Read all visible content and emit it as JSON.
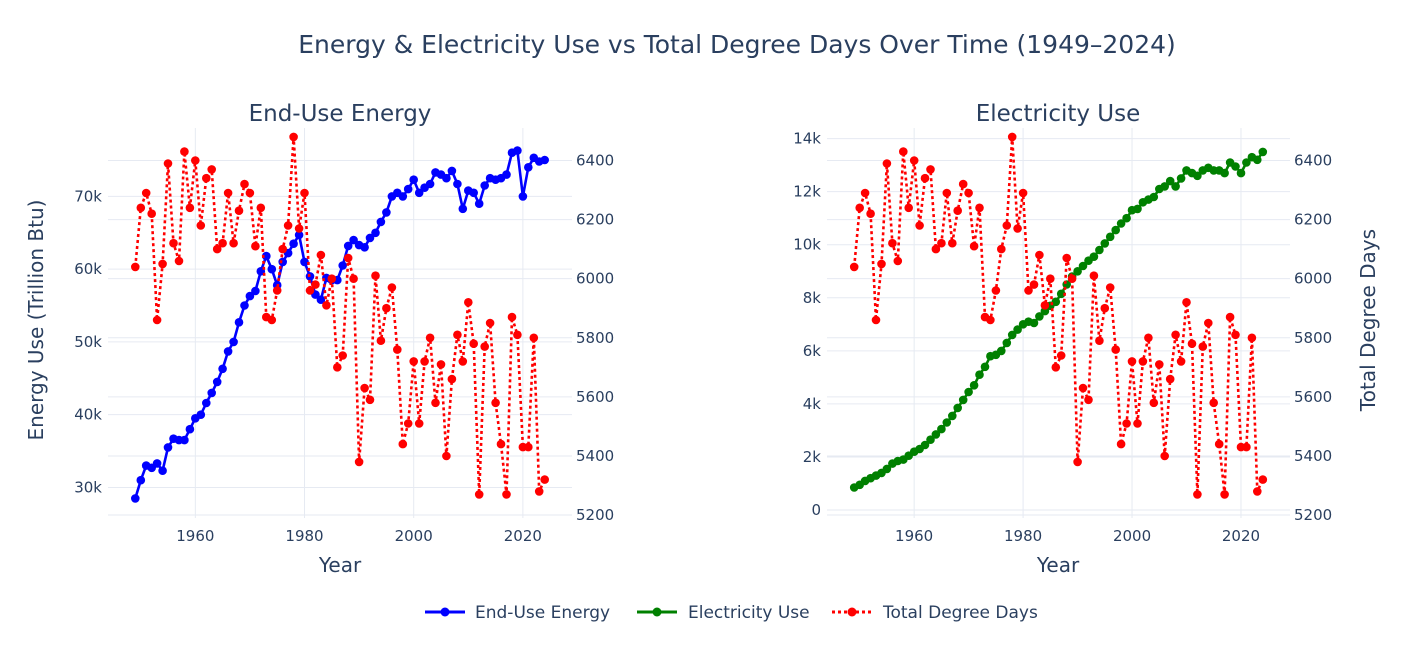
{
  "title": "Energy & Electricity Use vs Total Degree Days Over Time (1949–2024)",
  "legend": {
    "position": "bottom-center",
    "items": [
      {
        "label": "End-Use Energy",
        "color": "#0000ff",
        "dash": "solid"
      },
      {
        "label": "Electricity Use",
        "color": "#008000",
        "dash": "solid"
      },
      {
        "label": "Total Degree Days",
        "color": "#ff0000",
        "dash": "dot"
      }
    ]
  },
  "colors": {
    "energy": "#0000ff",
    "electricity": "#008000",
    "degree_days": "#ff0000",
    "grid": "#e6eaf2",
    "text": "#2a3f5f"
  },
  "chart_data": [
    {
      "type": "line",
      "title": "End-Use Energy",
      "xlabel": "Year",
      "ylabel": "Energy Use (Trillion Btu)",
      "y2label": "",
      "grid": true,
      "xlim": [
        1944,
        2029
      ],
      "xticks": [
        1960,
        1980,
        2000,
        2020
      ],
      "ylim": [
        25800,
        79400
      ],
      "yticks": [
        30000,
        40000,
        50000,
        60000,
        70000
      ],
      "ytick_labels": [
        "30k",
        "40k",
        "50k",
        "60k",
        "70k"
      ],
      "y2lim": [
        5190,
        6510
      ],
      "y2ticks": [
        5200,
        5400,
        5600,
        5800,
        6000,
        6200,
        6400
      ],
      "x": [
        1949,
        1950,
        1951,
        1952,
        1953,
        1954,
        1955,
        1956,
        1957,
        1958,
        1959,
        1960,
        1961,
        1962,
        1963,
        1964,
        1965,
        1966,
        1967,
        1968,
        1969,
        1970,
        1971,
        1972,
        1973,
        1974,
        1975,
        1976,
        1977,
        1978,
        1979,
        1980,
        1981,
        1982,
        1983,
        1984,
        1985,
        1986,
        1987,
        1988,
        1989,
        1990,
        1991,
        1992,
        1993,
        1994,
        1995,
        1996,
        1997,
        1998,
        1999,
        2000,
        2001,
        2002,
        2003,
        2004,
        2005,
        2006,
        2007,
        2008,
        2009,
        2010,
        2011,
        2012,
        2013,
        2014,
        2015,
        2016,
        2017,
        2018,
        2019,
        2020,
        2021,
        2022,
        2023,
        2024
      ],
      "series": [
        {
          "name": "End-Use Energy",
          "axis": "y",
          "color": "#0000ff",
          "dash": "solid",
          "values": [
            28500,
            31000,
            33000,
            32700,
            33300,
            32300,
            35500,
            36700,
            36500,
            36500,
            38000,
            39500,
            40000,
            41600,
            43000,
            44500,
            46300,
            48700,
            50000,
            52700,
            55000,
            56300,
            57000,
            59700,
            61800,
            60000,
            57800,
            61000,
            62200,
            63500,
            64700,
            61000,
            59000,
            56500,
            55800,
            58800,
            58500,
            58500,
            60500,
            63200,
            64000,
            63300,
            63000,
            64300,
            65000,
            66500,
            67800,
            70000,
            70500,
            70000,
            71000,
            72300,
            70500,
            71200,
            71700,
            73300,
            73000,
            72500,
            73500,
            71700,
            68300,
            70800,
            70500,
            69000,
            71500,
            72500,
            72300,
            72500,
            73000,
            76000,
            76300,
            70000,
            74000,
            75300,
            74800,
            75000
          ]
        },
        {
          "name": "Total Degree Days",
          "axis": "y2",
          "color": "#ff0000",
          "dash": "dot",
          "values": [
            6040,
            6240,
            6290,
            6220,
            5860,
            6050,
            6390,
            6120,
            6060,
            6430,
            6240,
            6400,
            6180,
            6340,
            6370,
            6100,
            6120,
            6290,
            6120,
            6230,
            6320,
            6290,
            6110,
            6240,
            5870,
            5860,
            5960,
            6100,
            6180,
            6480,
            6170,
            6290,
            5960,
            5980,
            6080,
            5910,
            6000,
            5700,
            5740,
            6070,
            6000,
            5380,
            5630,
            5590,
            6010,
            5790,
            5900,
            5970,
            5760,
            5440,
            5510,
            5720,
            5510,
            5720,
            5800,
            5580,
            5710,
            5400,
            5660,
            5810,
            5720,
            5920,
            5780,
            5270,
            5770,
            5850,
            5580,
            5440,
            5270,
            5870,
            5810,
            5430,
            5430,
            5800,
            5280,
            5320
          ]
        }
      ]
    },
    {
      "type": "line",
      "title": "Electricity Use",
      "xlabel": "Year",
      "ylabel": "",
      "y2label": "Total Degree Days",
      "grid": true,
      "xlim": [
        1944,
        2029
      ],
      "xticks": [
        1960,
        1980,
        2000,
        2020
      ],
      "ylim": [
        -300,
        14400
      ],
      "yticks": [
        0,
        2000,
        4000,
        6000,
        8000,
        10000,
        12000,
        14000
      ],
      "ytick_labels": [
        "0",
        "2k",
        "4k",
        "6k",
        "8k",
        "10k",
        "12k",
        "14k"
      ],
      "y2lim": [
        5190,
        6510
      ],
      "y2ticks": [
        5200,
        5400,
        5600,
        5800,
        6000,
        6200,
        6400
      ],
      "x": [
        1949,
        1950,
        1951,
        1952,
        1953,
        1954,
        1955,
        1956,
        1957,
        1958,
        1959,
        1960,
        1961,
        1962,
        1963,
        1964,
        1965,
        1966,
        1967,
        1968,
        1969,
        1970,
        1971,
        1972,
        1973,
        1974,
        1975,
        1976,
        1977,
        1978,
        1979,
        1980,
        1981,
        1982,
        1983,
        1984,
        1985,
        1986,
        1987,
        1988,
        1989,
        1990,
        1991,
        1992,
        1993,
        1994,
        1995,
        1996,
        1997,
        1998,
        1999,
        2000,
        2001,
        2002,
        2003,
        2004,
        2005,
        2006,
        2007,
        2008,
        2009,
        2010,
        2011,
        2012,
        2013,
        2014,
        2015,
        2016,
        2017,
        2018,
        2019,
        2020,
        2021,
        2022,
        2023,
        2024
      ],
      "series": [
        {
          "name": "Electricity Use",
          "axis": "y",
          "color": "#008000",
          "dash": "solid",
          "values": [
            850,
            950,
            1100,
            1200,
            1300,
            1400,
            1550,
            1750,
            1850,
            1900,
            2050,
            2200,
            2300,
            2450,
            2650,
            2850,
            3050,
            3300,
            3550,
            3850,
            4150,
            4450,
            4700,
            5100,
            5400,
            5800,
            5850,
            6000,
            6300,
            6600,
            6800,
            7000,
            7100,
            7050,
            7300,
            7500,
            7700,
            7850,
            8150,
            8500,
            8800,
            9000,
            9200,
            9400,
            9550,
            9800,
            10050,
            10300,
            10550,
            10800,
            11000,
            11300,
            11350,
            11600,
            11700,
            11800,
            12100,
            12200,
            12400,
            12200,
            12500,
            12800,
            12700,
            12600,
            12800,
            12900,
            12800,
            12800,
            12700,
            13100,
            12950,
            12700,
            13100,
            13300,
            13200,
            13500
          ]
        },
        {
          "name": "Total Degree Days",
          "axis": "y2",
          "color": "#ff0000",
          "dash": "dot",
          "values": [
            6040,
            6240,
            6290,
            6220,
            5860,
            6050,
            6390,
            6120,
            6060,
            6430,
            6240,
            6400,
            6180,
            6340,
            6370,
            6100,
            6120,
            6290,
            6120,
            6230,
            6320,
            6290,
            6110,
            6240,
            5870,
            5860,
            5960,
            6100,
            6180,
            6480,
            6170,
            6290,
            5960,
            5980,
            6080,
            5910,
            6000,
            5700,
            5740,
            6070,
            6000,
            5380,
            5630,
            5590,
            6010,
            5790,
            5900,
            5970,
            5760,
            5440,
            5510,
            5720,
            5510,
            5720,
            5800,
            5580,
            5710,
            5400,
            5660,
            5810,
            5720,
            5920,
            5780,
            5270,
            5770,
            5850,
            5580,
            5440,
            5270,
            5870,
            5810,
            5430,
            5430,
            5800,
            5280,
            5320
          ]
        }
      ]
    }
  ]
}
